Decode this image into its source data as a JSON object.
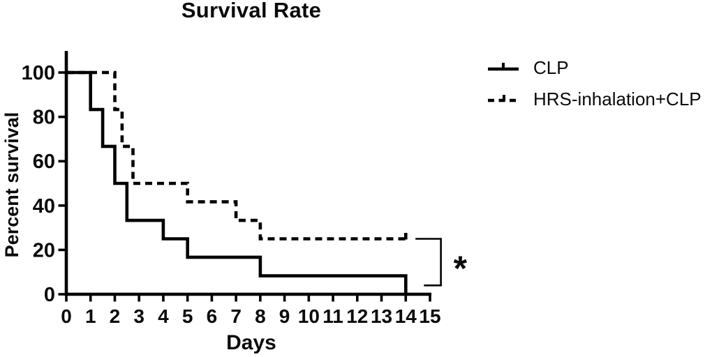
{
  "figure": {
    "background": "#ffffff",
    "ink_color": "#000000"
  },
  "chart_data": {
    "type": "line",
    "variant": "kaplan-meier-survival-step",
    "title": "Survival Rate",
    "xlabel": "Days",
    "ylabel": "Percent survival",
    "xlim": [
      0,
      15
    ],
    "ylim": [
      0,
      100
    ],
    "xticks": [
      0,
      1,
      2,
      3,
      4,
      5,
      6,
      7,
      8,
      9,
      10,
      11,
      12,
      13,
      14,
      15
    ],
    "yticks": [
      0,
      20,
      40,
      60,
      80,
      100
    ],
    "grid": false,
    "legend_position": "top-right-outside",
    "series": [
      {
        "name": "CLP",
        "line_style": "solid",
        "color": "#000000",
        "points": [
          [
            0,
            100
          ],
          [
            1,
            100
          ],
          [
            1,
            83.3
          ],
          [
            1.5,
            83.3
          ],
          [
            1.5,
            66.7
          ],
          [
            2,
            66.7
          ],
          [
            2,
            50
          ],
          [
            2.5,
            50
          ],
          [
            2.5,
            33.3
          ],
          [
            4,
            33.3
          ],
          [
            4,
            25
          ],
          [
            5,
            25
          ],
          [
            5,
            16.7
          ],
          [
            8,
            16.7
          ],
          [
            8,
            8.3
          ],
          [
            14,
            8.3
          ],
          [
            14,
            0
          ]
        ],
        "censor_ticks": []
      },
      {
        "name": "HRS-inhalation+CLP",
        "line_style": "dashed",
        "color": "#000000",
        "points": [
          [
            0,
            100
          ],
          [
            2,
            100
          ],
          [
            2,
            83.3
          ],
          [
            2.3,
            83.3
          ],
          [
            2.3,
            66.7
          ],
          [
            2.75,
            66.7
          ],
          [
            2.75,
            50
          ],
          [
            5,
            50
          ],
          [
            5,
            41.7
          ],
          [
            7,
            41.7
          ],
          [
            7,
            33.3
          ],
          [
            8,
            33.3
          ],
          [
            8,
            25
          ],
          [
            14,
            25
          ]
        ],
        "censor_ticks": [
          [
            14,
            25
          ]
        ]
      }
    ],
    "annotations": [
      {
        "type": "significance_bracket",
        "label": "*",
        "bracket_x": 15.45,
        "y_top": 25,
        "y_bottom": 4,
        "tail_top_x": 14.4,
        "tail_bottom_x": 14.75,
        "label_x": 16.25,
        "label_y": 13.5
      }
    ]
  }
}
